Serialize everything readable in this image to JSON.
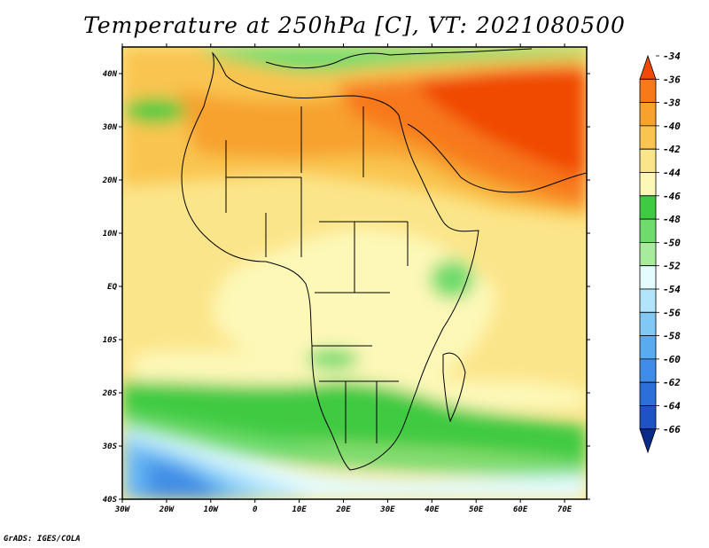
{
  "title": "Temperature at 250hPa [C], VT: 2021080500",
  "credit": "GrADS: IGES/COLA",
  "map": {
    "lon_labels": [
      "30W",
      "20W",
      "10W",
      "0",
      "10E",
      "20E",
      "30E",
      "40E",
      "50E",
      "60E",
      "70E"
    ],
    "lat_labels": [
      "40N",
      "30N",
      "20N",
      "10N",
      "EQ",
      "10S",
      "20S",
      "30S",
      "40S"
    ]
  },
  "colorbar": {
    "labels": [
      "-34",
      "-36",
      "-38",
      "-40",
      "-42",
      "-44",
      "-46",
      "-48",
      "-50",
      "-52",
      "-54",
      "-56",
      "-58",
      "-60",
      "-62",
      "-64",
      "-66"
    ],
    "colors": [
      "#f04a06",
      "#f7791a",
      "#f7a12e",
      "#f9c550",
      "#fbe58a",
      "#fdf8b8",
      "#3fca42",
      "#6fdb6d",
      "#a6ec9c",
      "#e4fbff",
      "#b2e5fb",
      "#82c8f5",
      "#5aaaf0",
      "#3f8de6",
      "#2c6fd8",
      "#1f52c4",
      "#0a2a8a"
    ]
  }
}
